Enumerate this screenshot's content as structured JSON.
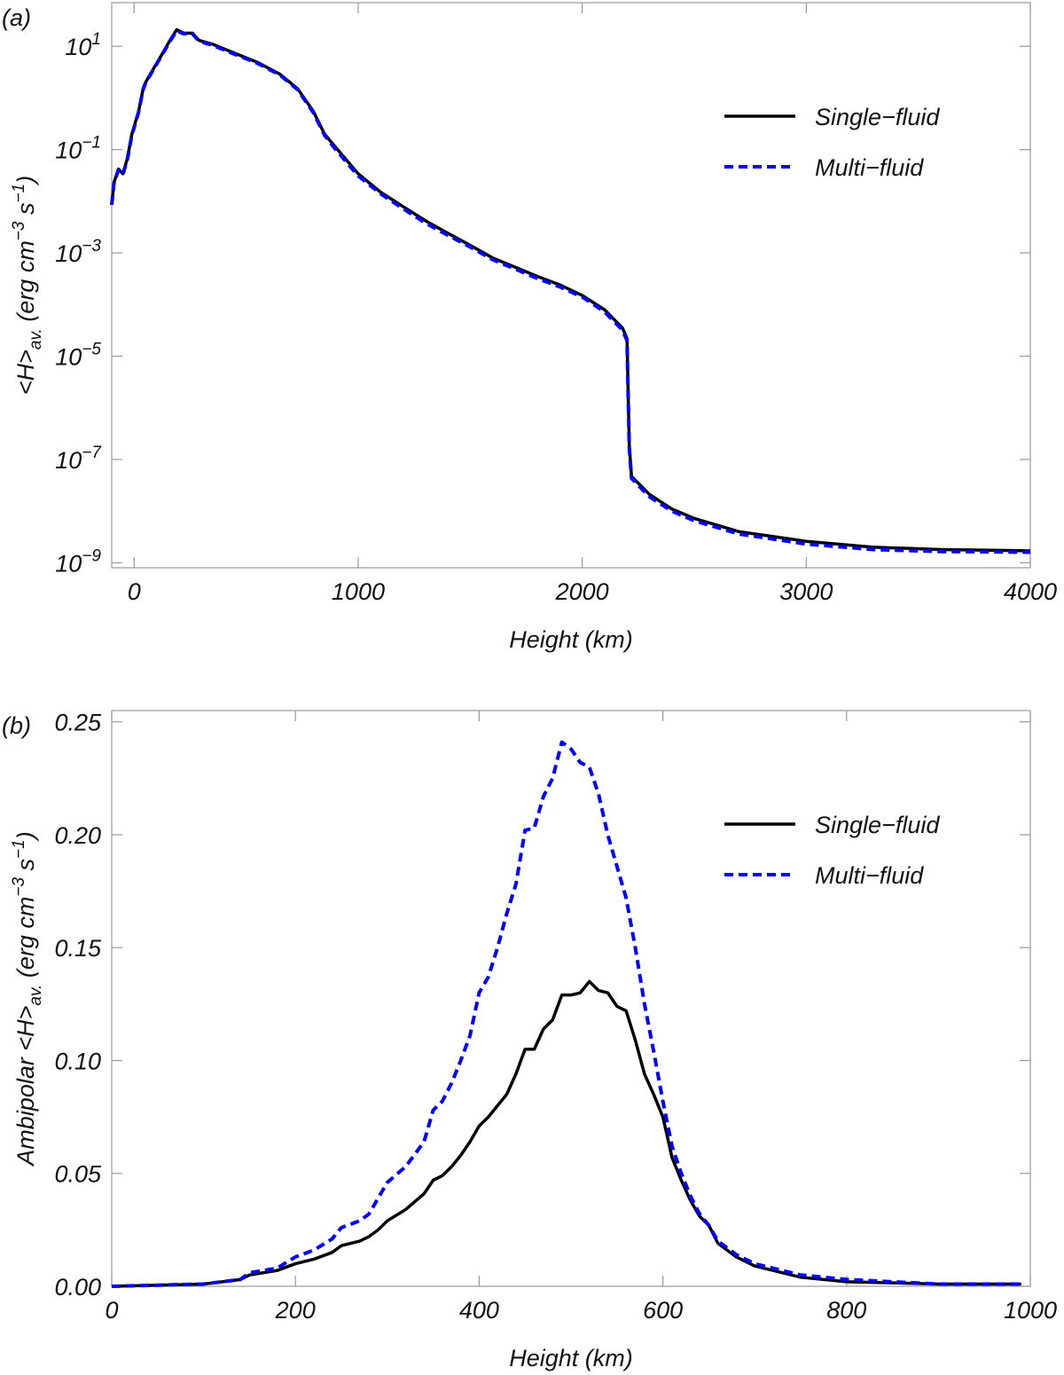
{
  "chart_data": [
    {
      "type": "line",
      "panel_label": "(a)",
      "ylog": true,
      "legend": "upper right",
      "xlabel": "Height (km)",
      "ylabel": [
        "<H>",
        "av.",
        " (erg cm",
        "−3",
        " s",
        "−1",
        ")"
      ],
      "xlim": [
        -100,
        4000
      ],
      "xticks": [
        0,
        1000,
        2000,
        3000,
        4000
      ],
      "ylim": [
        8e-10,
        70
      ],
      "yticks": [
        {
          "value": 10,
          "label": "10",
          "exp": "1"
        },
        {
          "value": 0.1,
          "label": "10",
          "exp": "−1"
        },
        {
          "value": 0.001,
          "label": "10",
          "exp": "−3"
        },
        {
          "value": 1e-05,
          "label": "10",
          "exp": "−5"
        },
        {
          "value": 1e-07,
          "label": "10",
          "exp": "−7"
        },
        {
          "value": 1e-09,
          "label": "10",
          "exp": "−9"
        }
      ],
      "x": [
        -100,
        -90,
        -70,
        -50,
        -30,
        -10,
        20,
        40,
        50,
        80,
        120,
        160,
        190,
        220,
        260,
        290,
        350,
        450,
        550,
        650,
        730,
        800,
        850,
        900,
        1000,
        1100,
        1200,
        1300,
        1400,
        1500,
        1600,
        1700,
        1800,
        1900,
        2000,
        2100,
        2180,
        2200,
        2210,
        2220,
        2300,
        2400,
        2500,
        2700,
        3000,
        3300,
        3600,
        4000
      ],
      "series": [
        {
          "name": "Single−fluid",
          "color": "#000000",
          "dashed": false,
          "values": [
            0.0085,
            0.023,
            0.042,
            0.034,
            0.068,
            0.2,
            0.55,
            1.5,
            1.95,
            3.3,
            6.5,
            13,
            21,
            18,
            18,
            13,
            11,
            7.3,
            4.9,
            2.9,
            1.5,
            0.55,
            0.2,
            0.11,
            0.034,
            0.015,
            0.0079,
            0.0042,
            0.0024,
            0.0014,
            0.0008,
            0.00053,
            0.00035,
            0.00024,
            0.00015,
            7.9e-05,
            3.5e-05,
            2.2e-05,
            1.9e-07,
            4.7e-08,
            2.1e-08,
            1.1e-08,
            7.2e-09,
            4e-09,
            2.6e-09,
            2e-09,
            1.8e-09,
            1.7e-09
          ]
        },
        {
          "name": "Multi−fluid",
          "color": "#0000ff",
          "dashed": true,
          "values": [
            0.0085,
            0.022,
            0.04,
            0.033,
            0.065,
            0.19,
            0.53,
            1.45,
            1.9,
            3.2,
            6.3,
            12.5,
            20,
            17.5,
            17.5,
            12.5,
            10.5,
            7,
            4.7,
            2.8,
            1.45,
            0.52,
            0.19,
            0.1,
            0.031,
            0.014,
            0.0072,
            0.0038,
            0.0022,
            0.0013,
            0.00074,
            0.00049,
            0.00032,
            0.00022,
            0.00014,
            7.2e-05,
            3.2e-05,
            2e-05,
            1.7e-07,
            4.3e-08,
            1.9e-08,
            1e-08,
            6.5e-09,
            3.6e-09,
            2.3e-09,
            1.8e-09,
            1.65e-09,
            1.6e-09
          ]
        }
      ]
    },
    {
      "type": "line",
      "panel_label": "(b)",
      "ylog": false,
      "legend": "upper right",
      "xlabel": "Height (km)",
      "ylabel": [
        "Ambipolar <H>",
        "av.",
        " (erg cm",
        "−3",
        " s",
        "−1",
        ")"
      ],
      "xlim": [
        0,
        1000
      ],
      "xticks": [
        0,
        200,
        400,
        600,
        800,
        1000
      ],
      "ylim": [
        0,
        0.255
      ],
      "yticks": [
        {
          "value": 0,
          "label": "0.00"
        },
        {
          "value": 0.05,
          "label": "0.05"
        },
        {
          "value": 0.1,
          "label": "0.10"
        },
        {
          "value": 0.15,
          "label": "0.15"
        },
        {
          "value": 0.2,
          "label": "0.20"
        },
        {
          "value": 0.25,
          "label": "0.25"
        }
      ],
      "x": [
        0,
        100,
        140,
        150,
        180,
        200,
        220,
        240,
        250,
        270,
        280,
        290,
        300,
        320,
        340,
        350,
        360,
        370,
        380,
        390,
        400,
        410,
        420,
        430,
        440,
        450,
        460,
        470,
        480,
        490,
        500,
        510,
        520,
        530,
        540,
        550,
        560,
        570,
        580,
        590,
        600,
        610,
        620,
        630,
        640,
        650,
        660,
        680,
        700,
        750,
        800,
        900,
        990
      ],
      "series": [
        {
          "name": "Single−fluid",
          "color": "#000000",
          "dashed": false,
          "values": [
            0,
            0.001,
            0.003,
            0.005,
            0.007,
            0.01,
            0.012,
            0.015,
            0.018,
            0.02,
            0.022,
            0.025,
            0.029,
            0.034,
            0.041,
            0.047,
            0.049,
            0.053,
            0.058,
            0.064,
            0.071,
            0.075,
            0.08,
            0.085,
            0.094,
            0.105,
            0.105,
            0.114,
            0.118,
            0.129,
            0.129,
            0.13,
            0.135,
            0.131,
            0.13,
            0.124,
            0.122,
            0.109,
            0.094,
            0.085,
            0.075,
            0.057,
            0.047,
            0.038,
            0.031,
            0.027,
            0.019,
            0.013,
            0.009,
            0.004,
            0.002,
            0.001,
            0.001
          ]
        },
        {
          "name": "Multi−fluid",
          "color": "#0000ff",
          "dashed": true,
          "values": [
            0,
            0.001,
            0.003,
            0.006,
            0.008,
            0.013,
            0.016,
            0.021,
            0.026,
            0.029,
            0.032,
            0.039,
            0.046,
            0.053,
            0.064,
            0.078,
            0.082,
            0.09,
            0.1,
            0.111,
            0.13,
            0.137,
            0.15,
            0.165,
            0.178,
            0.202,
            0.203,
            0.217,
            0.225,
            0.241,
            0.238,
            0.232,
            0.23,
            0.218,
            0.2,
            0.186,
            0.172,
            0.15,
            0.125,
            0.104,
            0.082,
            0.062,
            0.05,
            0.04,
            0.032,
            0.027,
            0.02,
            0.014,
            0.01,
            0.005,
            0.003,
            0.001,
            0.001
          ]
        }
      ]
    }
  ]
}
